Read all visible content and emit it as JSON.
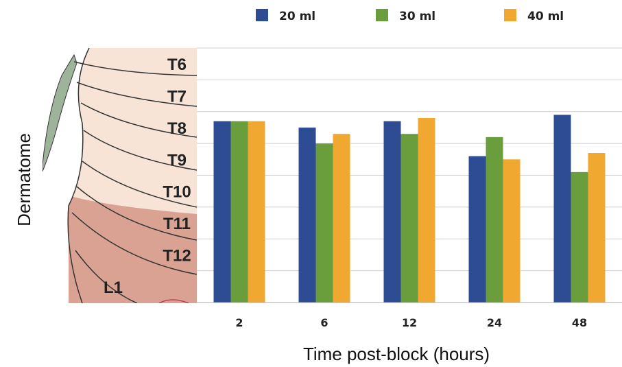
{
  "chart_data": {
    "type": "bar",
    "xlabel": "Time post-block (hours)",
    "ylabel": "Dermatome",
    "categories": [
      "2",
      "6",
      "12",
      "24",
      "48"
    ],
    "y_levels": [
      "T6",
      "T7",
      "T8",
      "T9",
      "T10",
      "T11",
      "T12",
      "L1"
    ],
    "ylim": [
      0,
      8
    ],
    "grid": true,
    "legend_position": "top",
    "series": [
      {
        "name": "20 ml",
        "color": "#2E4C94",
        "values": [
          5.7,
          5.5,
          5.7,
          4.6,
          5.9
        ]
      },
      {
        "name": "30 ml",
        "color": "#6A9E3C",
        "values": [
          5.7,
          5.0,
          5.3,
          5.2,
          4.1
        ]
      },
      {
        "name": "40 ml",
        "color": "#F0A830",
        "values": [
          5.7,
          5.3,
          5.8,
          4.5,
          4.7
        ]
      }
    ]
  }
}
